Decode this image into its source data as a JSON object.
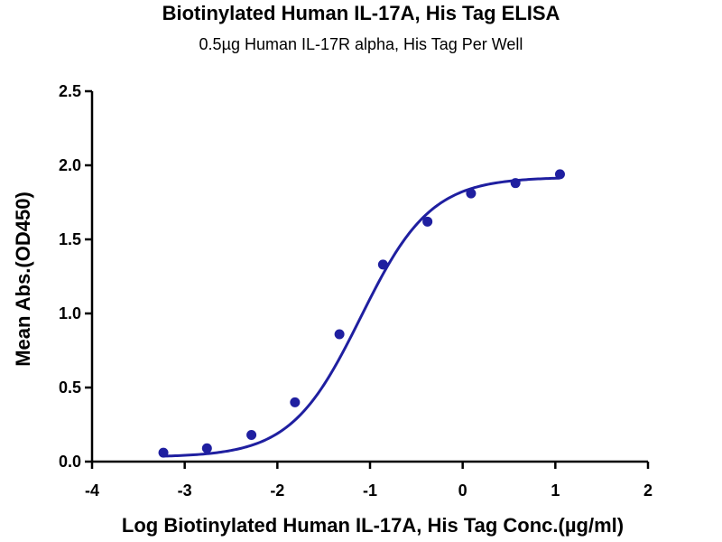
{
  "chart_data": {
    "type": "scatter",
    "title": "Biotinylated Human IL-17A, His Tag ELISA",
    "subtitle": "0.5µg Human IL-17R alpha, His Tag Per Well",
    "xlabel": "Log Biotinylated Human IL-17A, His Tag Conc.(µg/ml)",
    "ylabel": "Mean Abs.(OD450)",
    "xlim": [
      -4,
      2
    ],
    "ylim": [
      0,
      2.5
    ],
    "x_ticks": [
      -4,
      -3,
      -2,
      -1,
      0,
      1,
      2
    ],
    "x_tick_labels": [
      "-4",
      "-3",
      "-2",
      "-1",
      "0",
      "1",
      "2"
    ],
    "y_ticks": [
      0,
      0.5,
      1,
      1.5,
      2,
      2.5
    ],
    "y_tick_labels": [
      "0.0",
      "0.5",
      "1.0",
      "1.5",
      "2.0",
      "2.5"
    ],
    "grid": false,
    "legend": "none",
    "series": [
      {
        "color": "#1f1fa0",
        "x": [
          -3.23,
          -2.76,
          -2.28,
          -1.81,
          -1.33,
          -0.86,
          -0.38,
          0.09,
          0.57,
          1.05
        ],
        "y": [
          0.06,
          0.09,
          0.18,
          0.4,
          0.86,
          1.33,
          1.62,
          1.81,
          1.88,
          1.94
        ]
      }
    ],
    "fit_curve": {
      "model": "4PL",
      "bottom": 0.03,
      "top": 1.92,
      "log_ec50": -1.1,
      "hill_slope": 1.15,
      "color": "#1f1fa0"
    }
  }
}
